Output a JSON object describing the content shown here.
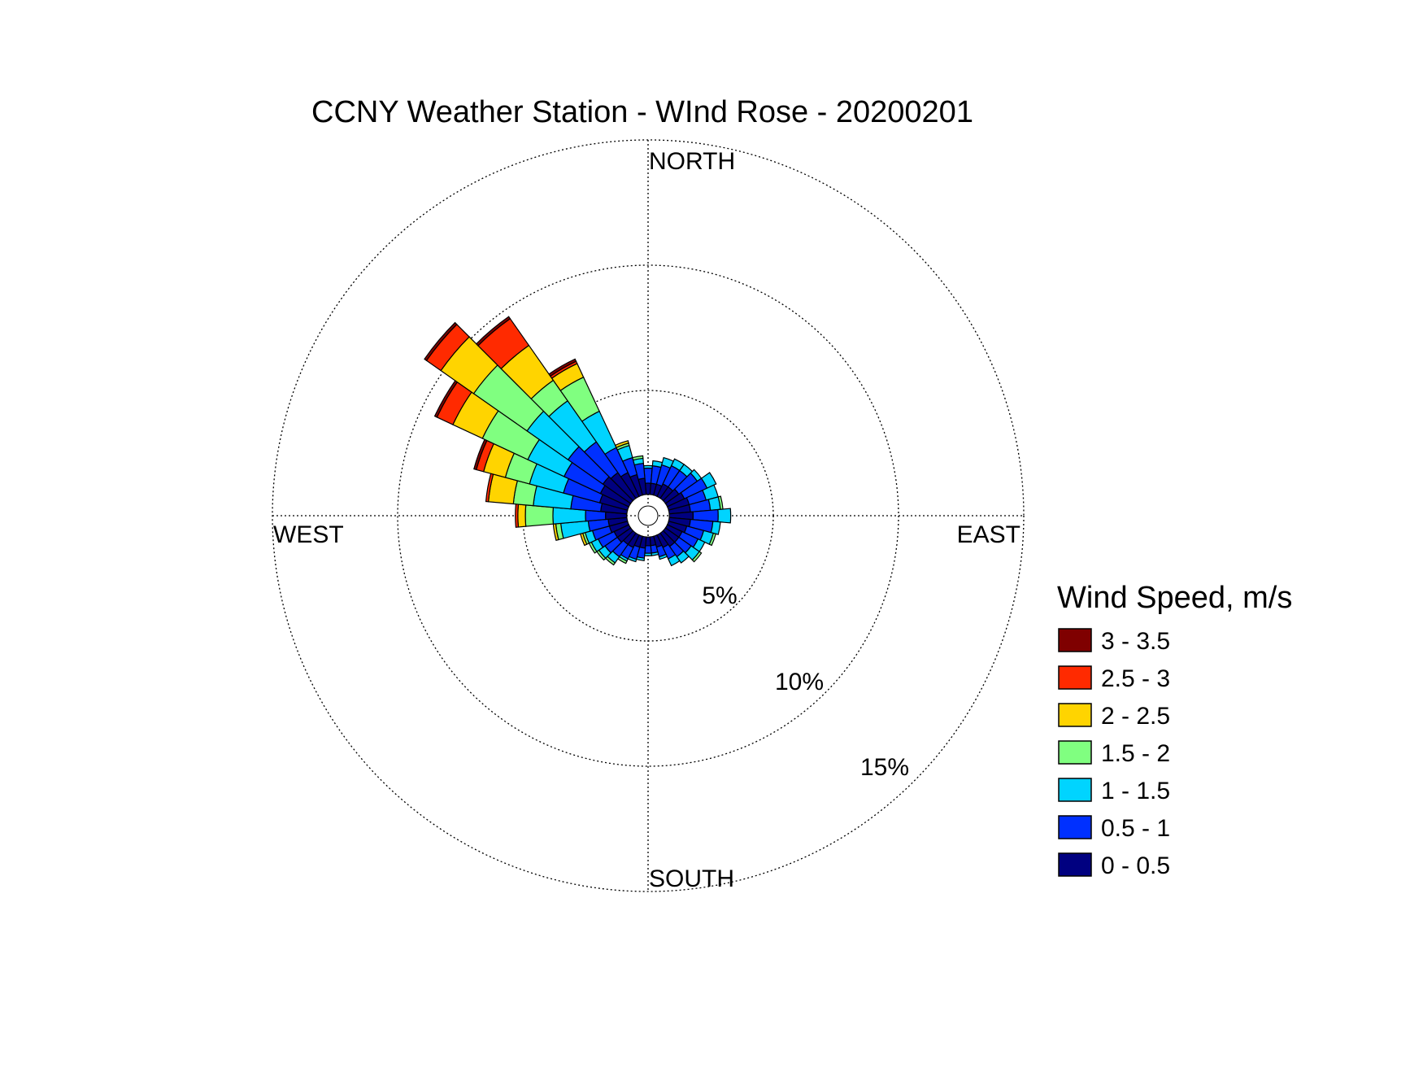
{
  "chart_data": {
    "type": "wind-rose",
    "title": "CCNY Weather Station - WInd Rose - 20200201",
    "directions": {
      "north": "NORTH",
      "south": "SOUTH",
      "east": "EAST",
      "west": "WEST"
    },
    "radial_ticks": [
      "5%",
      "10%",
      "15%"
    ],
    "radial_values": [
      5,
      10,
      15
    ],
    "r_max": 15,
    "center_hole": 0.85,
    "grid": true,
    "legend": {
      "title": "Wind Speed, m/s",
      "placement": "right",
      "entries": [
        {
          "label": "3 - 3.5",
          "color": "#7f0000"
        },
        {
          "label": "2.5 - 3",
          "color": "#ff2a00"
        },
        {
          "label": "2 - 2.5",
          "color": "#ffd400"
        },
        {
          "label": "1.5 - 2",
          "color": "#80ff80"
        },
        {
          "label": "1 - 1.5",
          "color": "#00d4ff"
        },
        {
          "label": "0.5 - 1",
          "color": "#0030ff"
        },
        {
          "label": "0 - 0.5",
          "color": "#000080"
        }
      ]
    },
    "bins": [
      "0 - 0.5",
      "0.5 - 1",
      "1 - 1.5",
      "1.5 - 2",
      "2 - 2.5",
      "2.5 - 3",
      "3 - 3.5"
    ],
    "bin_colors": [
      "#000080",
      "#0030ff",
      "#00d4ff",
      "#80ff80",
      "#ffd400",
      "#ff2a00",
      "#7f0000"
    ],
    "sector_width_deg": 10,
    "sectors": [
      {
        "direction": 0,
        "cumulative": [
          1.3,
          1.9,
          2.0
        ]
      },
      {
        "direction": 10,
        "cumulative": [
          1.3,
          2.0,
          2.2
        ]
      },
      {
        "direction": 20,
        "cumulative": [
          1.3,
          2.1,
          2.4
        ]
      },
      {
        "direction": 30,
        "cumulative": [
          1.4,
          2.2,
          2.5
        ]
      },
      {
        "direction": 40,
        "cumulative": [
          1.4,
          2.2,
          2.5
        ]
      },
      {
        "direction": 50,
        "cumulative": [
          1.5,
          2.4,
          2.6
        ]
      },
      {
        "direction": 60,
        "cumulative": [
          1.6,
          2.6,
          3.0
        ]
      },
      {
        "direction": 70,
        "cumulative": [
          1.7,
          2.4,
          2.9
        ]
      },
      {
        "direction": 80,
        "cumulative": [
          1.7,
          2.5,
          2.9,
          3.0
        ]
      },
      {
        "direction": 90,
        "cumulative": [
          1.8,
          2.8,
          3.3
        ]
      },
      {
        "direction": 100,
        "cumulative": [
          1.7,
          2.6,
          2.9
        ]
      },
      {
        "direction": 110,
        "cumulative": [
          1.6,
          2.3,
          2.7,
          2.8
        ]
      },
      {
        "direction": 120,
        "cumulative": [
          1.5,
          2.2,
          2.5
        ]
      },
      {
        "direction": 130,
        "cumulative": [
          1.5,
          2.1,
          2.5,
          2.6
        ]
      },
      {
        "direction": 140,
        "cumulative": [
          1.5,
          2.0,
          2.3
        ]
      },
      {
        "direction": 150,
        "cumulative": [
          1.4,
          1.9,
          2.2
        ]
      },
      {
        "direction": 160,
        "cumulative": [
          1.3,
          1.7,
          1.8
        ]
      },
      {
        "direction": 170,
        "cumulative": [
          1.2,
          1.5,
          1.6
        ]
      },
      {
        "direction": 180,
        "cumulative": [
          1.2,
          1.5,
          1.6
        ]
      },
      {
        "direction": 190,
        "cumulative": [
          1.3,
          1.7,
          1.8
        ]
      },
      {
        "direction": 200,
        "cumulative": [
          1.3,
          1.8,
          1.9
        ]
      },
      {
        "direction": 210,
        "cumulative": [
          1.4,
          1.9,
          2.0,
          2.1
        ]
      },
      {
        "direction": 220,
        "cumulative": [
          1.4,
          2.0,
          2.3,
          2.4
        ]
      },
      {
        "direction": 230,
        "cumulative": [
          1.5,
          2.1,
          2.4,
          2.5
        ]
      },
      {
        "direction": 240,
        "cumulative": [
          1.5,
          2.2,
          2.5,
          2.6
        ]
      },
      {
        "direction": 250,
        "cumulative": [
          1.6,
          2.3,
          2.6,
          2.7,
          2.8
        ]
      },
      {
        "direction": 260,
        "cumulative": [
          1.6,
          2.4,
          3.5,
          3.7,
          3.8
        ]
      },
      {
        "direction": 270,
        "cumulative": [
          1.7,
          2.5,
          3.8,
          4.9,
          5.2,
          5.3
        ]
      },
      {
        "direction": 280,
        "cumulative": [
          1.9,
          3.1,
          4.6,
          5.4,
          6.4,
          6.5
        ]
      },
      {
        "direction": 290,
        "cumulative": [
          2.0,
          3.5,
          4.9,
          5.9,
          6.8,
          7.1,
          7.2
        ]
      },
      {
        "direction": 300,
        "cumulative": [
          2.1,
          3.7,
          5.3,
          7.3,
          8.6,
          9.3,
          9.4
        ]
      },
      {
        "direction": 310,
        "cumulative": [
          2.2,
          3.9,
          5.9,
          8.5,
          10.1,
          10.8,
          10.9
        ]
      },
      {
        "direction": 320,
        "cumulative": [
          2.1,
          3.6,
          5.6,
          6.6,
          8.3,
          9.6,
          9.7
        ]
      },
      {
        "direction": 330,
        "cumulative": [
          1.9,
          3.0,
          4.6,
          6.1,
          6.7,
          6.8,
          6.9
        ]
      },
      {
        "direction": 340,
        "cumulative": [
          1.7,
          2.4,
          2.9,
          3.0,
          3.1
        ]
      },
      {
        "direction": 350,
        "cumulative": [
          1.5,
          2.1,
          2.3,
          2.4
        ]
      }
    ]
  }
}
